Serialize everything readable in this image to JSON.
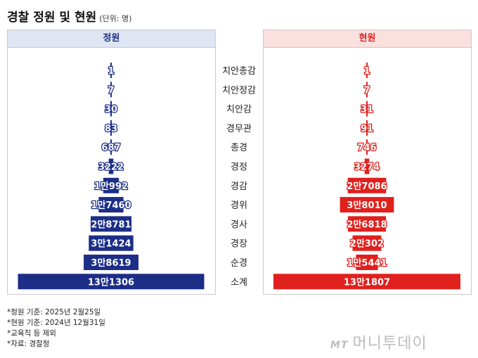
{
  "title": "경찰 정원 및 현원",
  "unit": "(단위: 명)",
  "panels": {
    "left": "정원",
    "right": "현원"
  },
  "colors": {
    "left": "#1c2e86",
    "right": "#e0201d",
    "left_header_bg": "#dfe5f3",
    "right_header_bg": "#fbe0e0"
  },
  "chart_data": {
    "type": "bar",
    "categories": [
      "치안총감",
      "치안정감",
      "치안감",
      "경무관",
      "총경",
      "경정",
      "경감",
      "경위",
      "경사",
      "경장",
      "순경",
      "소계"
    ],
    "series": [
      {
        "name": "정원",
        "values": [
          1,
          7,
          30,
          83,
          687,
          3222,
          10992,
          17460,
          28781,
          31424,
          38619,
          131306
        ],
        "labels": [
          "1",
          "7",
          "30",
          "83",
          "687",
          "3222",
          "1만992",
          "1만7460",
          "2만8781",
          "3만1424",
          "3만8619",
          "13만1306"
        ]
      },
      {
        "name": "현원",
        "values": [
          1,
          7,
          31,
          91,
          746,
          3274,
          27086,
          38010,
          26818,
          20302,
          15441,
          131807
        ],
        "labels": [
          "1",
          "7",
          "31",
          "91",
          "746",
          "3274",
          "2만7086",
          "3만8010",
          "2만6818",
          "2만302",
          "1만5441",
          "13만1807"
        ]
      }
    ]
  },
  "notes": [
    "*정원 기준: 2025년 2월25일",
    "*현원 기준: 2024년 12월31일",
    "*교육직 등 제외",
    "*자료: 경찰청"
  ],
  "watermark": {
    "mark": "MT",
    "text": "머니투데이"
  }
}
